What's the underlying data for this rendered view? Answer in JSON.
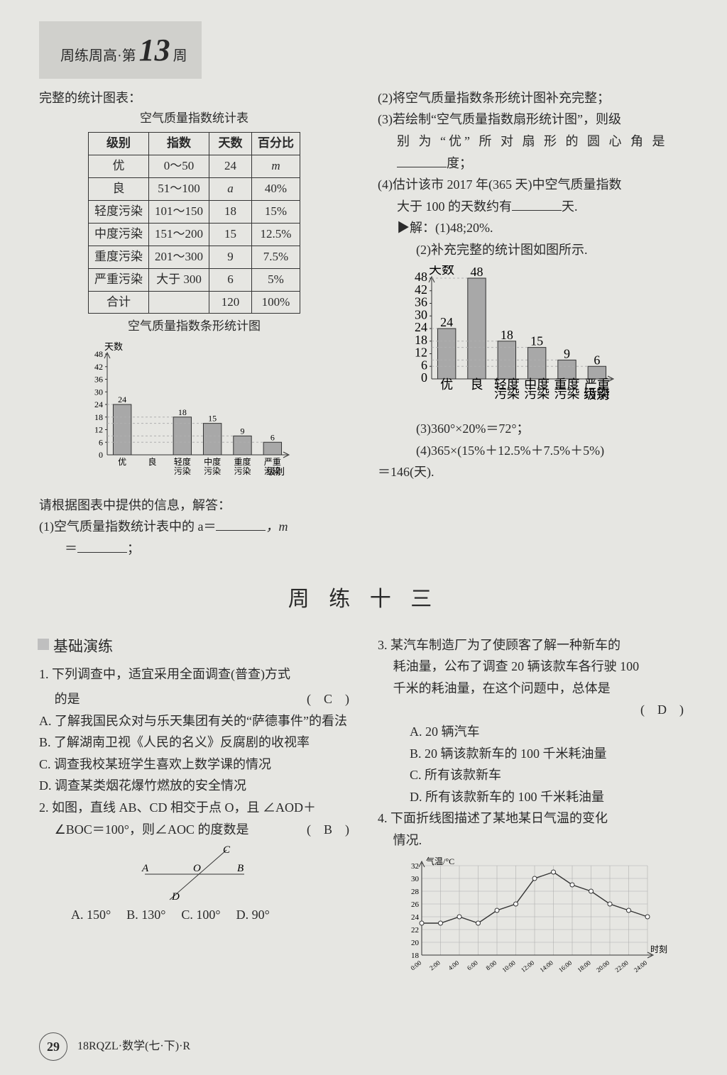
{
  "header": {
    "pre": "周练周高·第",
    "num": "13",
    "suf": "周"
  },
  "top_left": {
    "intro": "完整的统计图表：",
    "table_title": "空气质量指数统计表",
    "columns": [
      "级别",
      "指数",
      "天数",
      "百分比"
    ],
    "rows": [
      [
        "优",
        "0～50",
        "24",
        "m"
      ],
      [
        "良",
        "51～100",
        "a",
        "40%"
      ],
      [
        "轻度污染",
        "101～150",
        "18",
        "15%"
      ],
      [
        "中度污染",
        "151～200",
        "15",
        "12.5%"
      ],
      [
        "重度污染",
        "201～300",
        "9",
        "7.5%"
      ],
      [
        "严重污染",
        "大于 300",
        "6",
        "5%"
      ],
      [
        "合计",
        "",
        "120",
        "100%"
      ]
    ],
    "chart_title": "空气质量指数条形统计图",
    "chart": {
      "type": "bar",
      "y_label": "天数",
      "x_label": "级别",
      "categories": [
        "优",
        "良",
        "轻度\n污染",
        "中度\n污染",
        "重度\n污染",
        "严重\n污染"
      ],
      "values": [
        24,
        null,
        18,
        15,
        9,
        6
      ],
      "value_labels": [
        "24",
        "",
        "18",
        "15",
        "9",
        "6"
      ],
      "yticks": [
        0,
        6,
        12,
        18,
        24,
        30,
        36,
        42,
        48
      ],
      "bar_color": "#a8a8a8",
      "bar_border": "#333333",
      "grid_color": "#b0b0b0",
      "axis_color": "#333333",
      "background": "#e6e6e2",
      "label_fontsize": 12,
      "dashed_guides": [
        24,
        18,
        15,
        9,
        6
      ],
      "bar_width": 0.6
    },
    "q1_pre": "请根据图表中提供的信息，解答：",
    "q1": "(1)空气质量指数统计表中的 a＝",
    "q1_mid": "，m",
    "q1_line2": "＝",
    "q1_suf": "；"
  },
  "top_right": {
    "q2": "(2)将空气质量指数条形统计图补充完整；",
    "q3a": "(3)若绘制“空气质量指数扇形统计图”，则级",
    "q3b": "别 为 “优” 所 对 扇 形 的 圆 心 角 是",
    "q3c_suf": "度；",
    "q4a": "(4)估计该市 2017 年(365 天)中空气质量指数",
    "q4b_pre": "大于 100 的天数约有",
    "q4b_suf": "天.",
    "sol_label": "▶解：",
    "sol1": "(1)48;20%.",
    "sol2": "(2)补充完整的统计图如图所示.",
    "chart": {
      "type": "bar",
      "y_label": "天数",
      "x_label": "级别",
      "categories": [
        "优",
        "良",
        "轻度\n污染",
        "中度\n污染",
        "重度\n污染",
        "严重\n污染"
      ],
      "values": [
        24,
        48,
        18,
        15,
        9,
        6
      ],
      "value_labels": [
        "24",
        "48",
        "18",
        "15",
        "9",
        "6"
      ],
      "yticks": [
        0,
        6,
        12,
        18,
        24,
        30,
        36,
        42,
        48
      ],
      "bar_color": "#a8a8a8",
      "bar_border": "#333333",
      "grid_color": "#b0b0b0",
      "axis_color": "#333333",
      "dashed_guides": [
        24,
        48,
        18,
        15,
        9,
        6
      ],
      "bar_width": 0.6
    },
    "sol3": "(3)360°×20%＝72°；",
    "sol4a": "(4)365×(15%＋12.5%＋7.5%＋5%)",
    "sol4b": "＝146(天)."
  },
  "divider_title": "周 练 十 三",
  "bottom_left": {
    "subhead": "基础演练",
    "q1_stem": "1. 下列调查中，适宜采用全面调查(普查)方式",
    "q1_stem2_pre": "的是",
    "q1_ans": "(　C　)",
    "q1_opts": [
      "A. 了解我国民众对与乐天集团有关的“萨德事件”的看法",
      "B. 了解湖南卫视《人民的名义》反腐剧的收视率",
      "C. 调查我校某班学生喜欢上数学课的情况",
      "D. 调查某类烟花爆竹燃放的安全情况"
    ],
    "q2_stem1": "2. 如图，直线 AB、CD 相交于点 O，且 ∠AOD＋",
    "q2_stem2_pre": "∠BOC＝100°，则∠AOC 的度数是",
    "q2_ans": "(　B　)",
    "diagram": {
      "type": "line-intersection",
      "labels": {
        "A": "A",
        "B": "B",
        "C": "C",
        "D": "D",
        "O": "O"
      },
      "line_color": "#333333"
    },
    "q2_opts": [
      "A. 150°",
      "B. 130°",
      "C. 100°",
      "D. 90°"
    ]
  },
  "bottom_right": {
    "q3_stem1": "3. 某汽车制造厂为了使顾客了解一种新车的",
    "q3_stem2": "耗油量，公布了调查 20 辆该款车各行驶 100",
    "q3_stem3": "千米的耗油量，在这个问题中，总体是",
    "q3_ans": "(　D　)",
    "q3_opts": [
      "A. 20 辆汽车",
      "B. 20 辆该款新车的 100 千米耗油量",
      "C. 所有该款新车",
      "D. 所有该款新车的 100 千米耗油量"
    ],
    "q4_stem1": "4. 下面折线图描述了某地某日气温的变化",
    "q4_stem2": "情况.",
    "chart": {
      "type": "line",
      "y_label": "气温/°C",
      "x_label": "时刻",
      "x_ticks": [
        "0:00",
        "2:00",
        "4:00",
        "6:00",
        "8:00",
        "10:00",
        "12:00",
        "14:00",
        "16:00",
        "18:00",
        "20:00",
        "22:00",
        "24:00"
      ],
      "y_ticks": [
        18,
        20,
        22,
        24,
        26,
        28,
        30,
        32
      ],
      "points_y": [
        23,
        23,
        24,
        23,
        25,
        26,
        30,
        31,
        29,
        28,
        26,
        25,
        24
      ],
      "line_color": "#333333",
      "marker": "circle",
      "marker_fill": "#ffffff",
      "marker_size": 3,
      "grid_color": "#b0b0b0",
      "axis_color": "#333333"
    }
  },
  "footer": {
    "page": "29",
    "code": "18RQZL·数学(七·下)·R"
  }
}
